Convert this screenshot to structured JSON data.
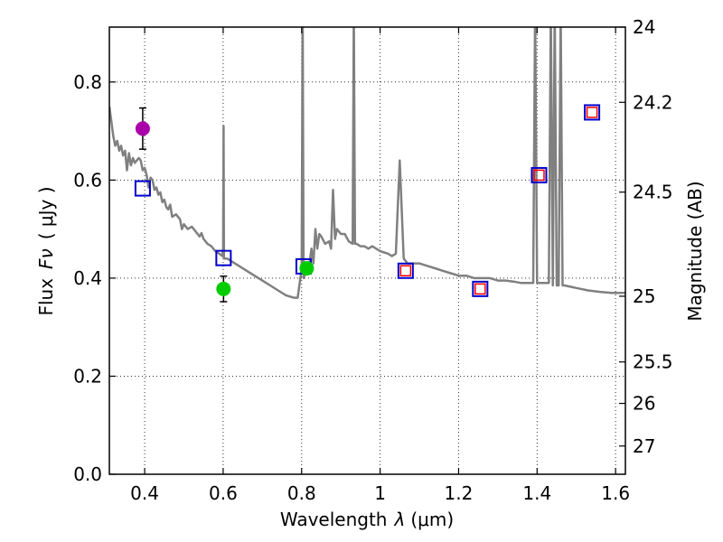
{
  "chart_data": {
    "type": "scatter",
    "xlabel_prefix": "Wavelength",
    "xlabel_symbol": "λ",
    "xlabel_unit": "(μm)",
    "ylabel_prefix": "Flux",
    "ylabel_symbol": "Fν",
    "ylabel_unit": "( μJy )",
    "y2label": "Magnitude (AB)",
    "xlim": [
      0.31,
      1.625
    ],
    "ylim": [
      0.0,
      0.912
    ],
    "x_ticks": [
      {
        "value": 0.4,
        "label": "0.4"
      },
      {
        "value": 0.6,
        "label": "0.6"
      },
      {
        "value": 0.8,
        "label": "0.8"
      },
      {
        "value": 1.0,
        "label": "1"
      },
      {
        "value": 1.2,
        "label": "1.2"
      },
      {
        "value": 1.4,
        "label": "1.4"
      },
      {
        "value": 1.6,
        "label": "1.6"
      }
    ],
    "y_ticks": [
      {
        "value": 0.0,
        "label": "0.0"
      },
      {
        "value": 0.2,
        "label": "0.2"
      },
      {
        "value": 0.4,
        "label": "0.4"
      },
      {
        "value": 0.6,
        "label": "0.6"
      },
      {
        "value": 0.8,
        "label": "0.8"
      }
    ],
    "mag_ticks": [
      {
        "value": 24,
        "label": "24"
      },
      {
        "value": 24.2,
        "label": "24.2"
      },
      {
        "value": 24.5,
        "label": "24.5"
      },
      {
        "value": 25,
        "label": "25"
      },
      {
        "value": 25.5,
        "label": "25.5"
      },
      {
        "value": 26,
        "label": "26"
      },
      {
        "value": 27,
        "label": "27"
      }
    ],
    "grid": true,
    "model_color": "#808080",
    "model_spectrum": [
      [
        0.31,
        0.75
      ],
      [
        0.315,
        0.72
      ],
      [
        0.32,
        0.69
      ],
      [
        0.325,
        0.67
      ],
      [
        0.33,
        0.68
      ],
      [
        0.335,
        0.66
      ],
      [
        0.34,
        0.67
      ],
      [
        0.345,
        0.65
      ],
      [
        0.35,
        0.66
      ],
      [
        0.355,
        0.62
      ],
      [
        0.36,
        0.655
      ],
      [
        0.365,
        0.63
      ],
      [
        0.37,
        0.645
      ],
      [
        0.375,
        0.635
      ],
      [
        0.38,
        0.64
      ],
      [
        0.385,
        0.645
      ],
      [
        0.39,
        0.64
      ],
      [
        0.395,
        0.62
      ],
      [
        0.4,
        0.625
      ],
      [
        0.405,
        0.61
      ],
      [
        0.41,
        0.585
      ],
      [
        0.415,
        0.605
      ],
      [
        0.42,
        0.6
      ],
      [
        0.425,
        0.58
      ],
      [
        0.43,
        0.585
      ],
      [
        0.435,
        0.57
      ],
      [
        0.44,
        0.575
      ],
      [
        0.445,
        0.555
      ],
      [
        0.45,
        0.56
      ],
      [
        0.455,
        0.545
      ],
      [
        0.46,
        0.54
      ],
      [
        0.465,
        0.55
      ],
      [
        0.47,
        0.525
      ],
      [
        0.48,
        0.53
      ],
      [
        0.49,
        0.52
      ],
      [
        0.495,
        0.5
      ],
      [
        0.5,
        0.51
      ],
      [
        0.51,
        0.5
      ],
      [
        0.52,
        0.505
      ],
      [
        0.53,
        0.495
      ],
      [
        0.54,
        0.485
      ],
      [
        0.545,
        0.492
      ],
      [
        0.55,
        0.48
      ],
      [
        0.56,
        0.47
      ],
      [
        0.57,
        0.465
      ],
      [
        0.58,
        0.455
      ],
      [
        0.59,
        0.45
      ],
      [
        0.598,
        0.445
      ],
      [
        0.6,
        0.46
      ],
      [
        0.601,
        0.71
      ],
      [
        0.602,
        0.44
      ],
      [
        0.61,
        0.44
      ],
      [
        0.62,
        0.435
      ],
      [
        0.64,
        0.425
      ],
      [
        0.66,
        0.415
      ],
      [
        0.68,
        0.405
      ],
      [
        0.7,
        0.395
      ],
      [
        0.72,
        0.385
      ],
      [
        0.74,
        0.375
      ],
      [
        0.76,
        0.365
      ],
      [
        0.78,
        0.36
      ],
      [
        0.79,
        0.36
      ],
      [
        0.795,
        0.39
      ],
      [
        0.8,
        0.42
      ],
      [
        0.8025,
        0.95
      ],
      [
        0.805,
        0.4
      ],
      [
        0.81,
        0.41
      ],
      [
        0.82,
        0.43
      ],
      [
        0.825,
        0.46
      ],
      [
        0.83,
        0.43
      ],
      [
        0.835,
        0.5
      ],
      [
        0.84,
        0.46
      ],
      [
        0.845,
        0.49
      ],
      [
        0.85,
        0.485
      ],
      [
        0.86,
        0.47
      ],
      [
        0.87,
        0.475
      ],
      [
        0.875,
        0.46
      ],
      [
        0.88,
        0.58
      ],
      [
        0.885,
        0.48
      ],
      [
        0.89,
        0.5
      ],
      [
        0.9,
        0.49
      ],
      [
        0.91,
        0.49
      ],
      [
        0.92,
        0.475
      ],
      [
        0.93,
        0.47
      ],
      [
        0.933,
        0.95
      ],
      [
        0.936,
        0.47
      ],
      [
        0.94,
        0.47
      ],
      [
        0.95,
        0.465
      ],
      [
        0.96,
        0.465
      ],
      [
        0.97,
        0.46
      ],
      [
        0.98,
        0.465
      ],
      [
        0.99,
        0.46
      ],
      [
        1.0,
        0.455
      ],
      [
        1.02,
        0.45
      ],
      [
        1.03,
        0.445
      ],
      [
        1.04,
        0.45
      ],
      [
        1.05,
        0.64
      ],
      [
        1.06,
        0.44
      ],
      [
        1.07,
        0.43
      ],
      [
        1.08,
        0.43
      ],
      [
        1.1,
        0.43
      ],
      [
        1.12,
        0.425
      ],
      [
        1.14,
        0.42
      ],
      [
        1.16,
        0.415
      ],
      [
        1.18,
        0.41
      ],
      [
        1.2,
        0.405
      ],
      [
        1.22,
        0.405
      ],
      [
        1.24,
        0.4
      ],
      [
        1.26,
        0.4
      ],
      [
        1.28,
        0.4
      ],
      [
        1.3,
        0.395
      ],
      [
        1.32,
        0.395
      ],
      [
        1.34,
        0.393
      ],
      [
        1.36,
        0.39
      ],
      [
        1.38,
        0.39
      ],
      [
        1.39,
        0.39
      ],
      [
        1.395,
        0.95
      ],
      [
        1.4,
        0.39
      ],
      [
        1.41,
        0.39
      ],
      [
        1.42,
        0.39
      ],
      [
        1.43,
        0.39
      ],
      [
        1.435,
        0.95
      ],
      [
        1.44,
        0.385
      ],
      [
        1.445,
        0.95
      ],
      [
        1.45,
        0.385
      ],
      [
        1.455,
        0.385
      ],
      [
        1.46,
        0.95
      ],
      [
        1.465,
        0.385
      ],
      [
        1.47,
        0.385
      ],
      [
        1.5,
        0.38
      ],
      [
        1.53,
        0.375
      ],
      [
        1.56,
        0.372
      ],
      [
        1.59,
        0.37
      ],
      [
        1.62,
        0.37
      ],
      [
        1.625,
        0.37
      ]
    ],
    "model_points": [
      {
        "x": 0.395,
        "y": 0.583,
        "inner": false
      },
      {
        "x": 0.601,
        "y": 0.441,
        "inner": false
      },
      {
        "x": 0.805,
        "y": 0.424,
        "inner": false
      },
      {
        "x": 1.065,
        "y": 0.415,
        "inner": true
      },
      {
        "x": 1.255,
        "y": 0.378,
        "inner": true
      },
      {
        "x": 1.405,
        "y": 0.61,
        "inner": true
      },
      {
        "x": 1.54,
        "y": 0.738,
        "inner": true
      }
    ],
    "box_outer_color": "#0000cc",
    "box_inner_color": "#ff0000",
    "observed_points": [
      {
        "x": 0.395,
        "y": 0.705,
        "err": 0.042,
        "color": "#aa00aa"
      },
      {
        "x": 0.601,
        "y": 0.378,
        "err": 0.026,
        "color": "#00cc00"
      },
      {
        "x": 0.813,
        "y": 0.42,
        "err": 0.0,
        "color": "#00cc00"
      }
    ]
  }
}
